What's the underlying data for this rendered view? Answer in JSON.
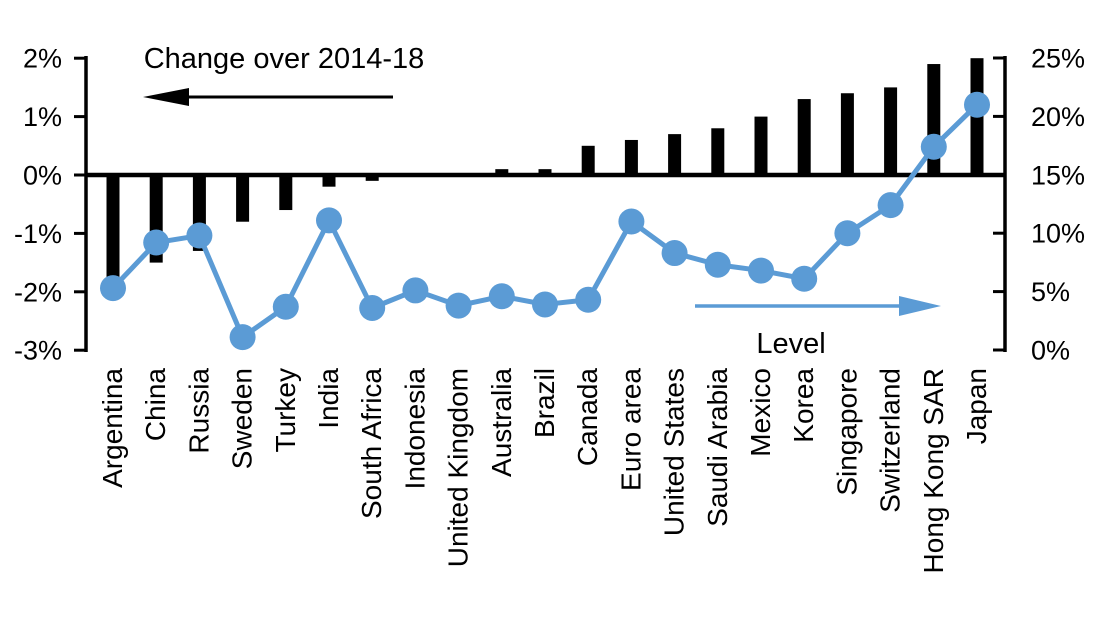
{
  "chart_data": {
    "type": "combo-bar-line-dual-axis",
    "categories": [
      "Argentina",
      "China",
      "Russia",
      "Sweden",
      "Turkey",
      "India",
      "South Africa",
      "Indonesia",
      "United Kingdom",
      "Australia",
      "Brazil",
      "Canada",
      "Euro area",
      "United States",
      "Saudi Arabia",
      "Mexico",
      "Korea",
      "Singapore",
      "Switzerland",
      "Hong Kong SAR",
      "Japan"
    ],
    "series": [
      {
        "name": "Change over 2014-18",
        "type": "bar",
        "axis": "left",
        "color": "#000000",
        "unit": "%",
        "values": [
          -1.8,
          -1.5,
          -1.3,
          -0.8,
          -0.6,
          -0.2,
          -0.1,
          0.0,
          0.0,
          0.1,
          0.1,
          0.5,
          0.6,
          0.7,
          0.8,
          1.0,
          1.3,
          1.4,
          1.5,
          1.9,
          2.0
        ]
      },
      {
        "name": "Level",
        "type": "line",
        "axis": "right",
        "color": "#5b9bd5",
        "unit": "%",
        "values": [
          5.3,
          9.2,
          9.8,
          1.1,
          3.7,
          11.1,
          3.6,
          5.1,
          3.8,
          4.6,
          3.9,
          4.3,
          11.0,
          8.3,
          7.3,
          6.8,
          6.1,
          10.0,
          12.4,
          17.4,
          21.0
        ]
      }
    ],
    "left_axis": {
      "range": [
        -3,
        2
      ],
      "tick_labels": [
        "2%",
        "1%",
        "0%",
        "-1%",
        "-2%",
        "-3%"
      ],
      "tick_values": [
        2,
        1,
        0,
        -1,
        -2,
        -3
      ]
    },
    "right_axis": {
      "range": [
        0,
        25
      ],
      "tick_labels": [
        "25%",
        "20%",
        "15%",
        "10%",
        "5%",
        "0%"
      ],
      "tick_values": [
        25,
        20,
        15,
        10,
        5,
        0
      ]
    },
    "annotations": {
      "bar_arrow_label": "Change over 2014-18",
      "bar_arrow_direction": "left",
      "line_arrow_label": "Level",
      "line_arrow_direction": "right"
    },
    "legend_position": "none",
    "grid": false
  }
}
